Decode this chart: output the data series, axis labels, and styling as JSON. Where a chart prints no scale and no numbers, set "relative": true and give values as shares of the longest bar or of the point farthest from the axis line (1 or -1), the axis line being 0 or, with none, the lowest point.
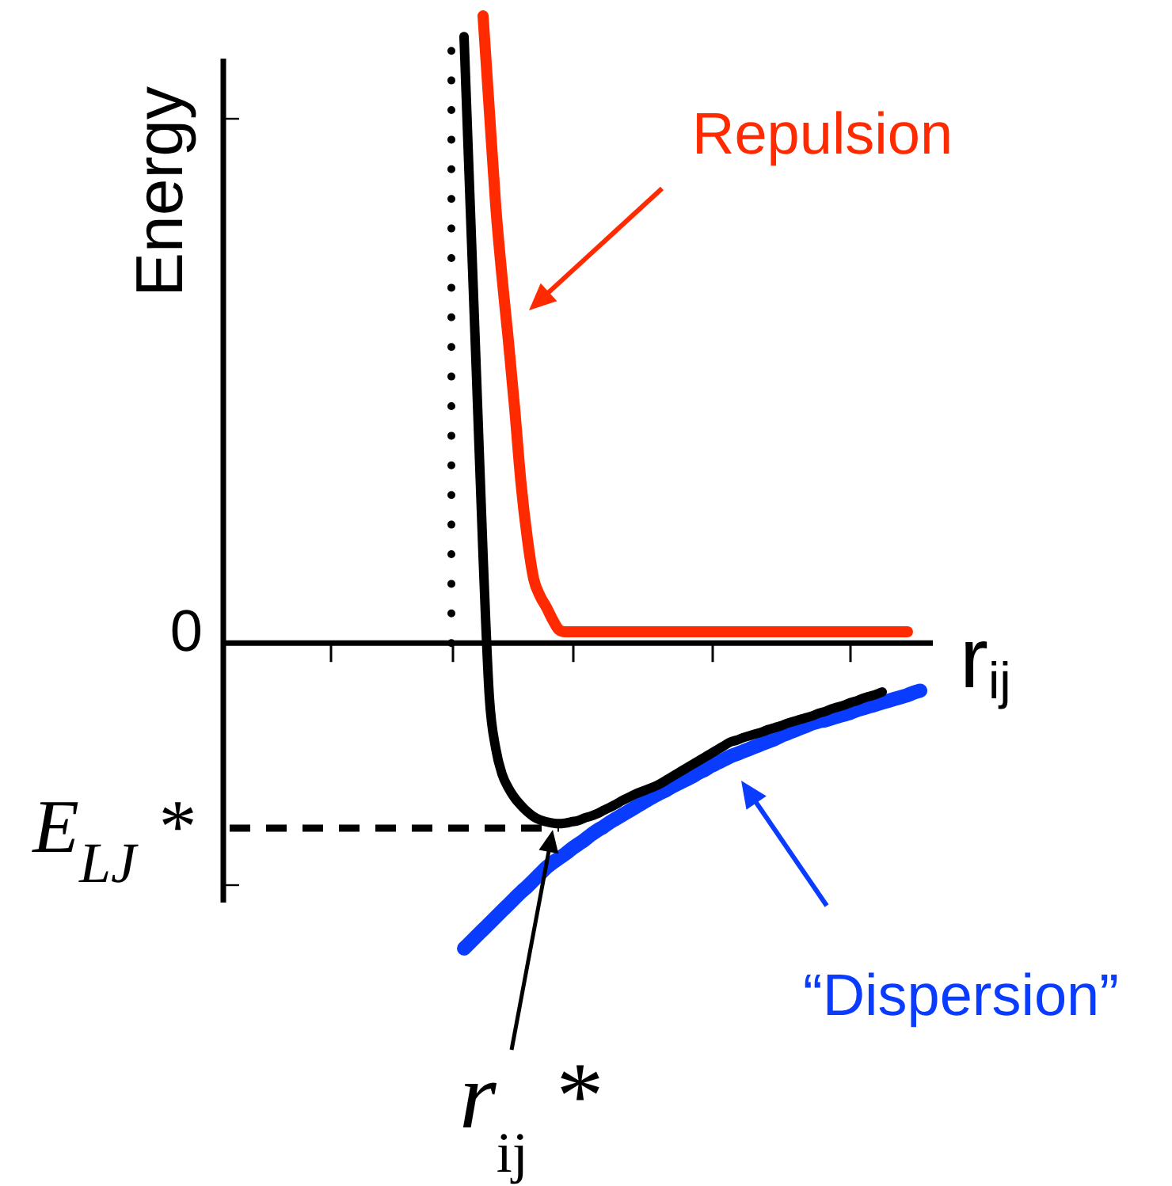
{
  "chart_data": {
    "type": "line",
    "relative": true,
    "marker": "none",
    "ylabel": "Energy",
    "xlabel": "r$_{ij}$",
    "categories": [
      null,
      null,
      null,
      null,
      null,
      null,
      null,
      null,
      null,
      null,
      null,
      null,
      null,
      null,
      null,
      null,
      null,
      null,
      null,
      null,
      null,
      null,
      null,
      null,
      null,
      null,
      null,
      null,
      null,
      null,
      null,
      null,
      null,
      null,
      null,
      null,
      null,
      null,
      null,
      null,
      null,
      null,
      null,
      null,
      null,
      null,
      null,
      null,
      null,
      null,
      null,
      null,
      null,
      null,
      null,
      null,
      null,
      null,
      null,
      null,
      null,
      null,
      null,
      null,
      null,
      null,
      null,
      null,
      null,
      null,
      null,
      null,
      null,
      null,
      null,
      null,
      null,
      null,
      null,
      null,
      null,
      null,
      null,
      null,
      null,
      null,
      null,
      null,
      null,
      null,
      null,
      null,
      null,
      null,
      null,
      null,
      null,
      null,
      null,
      null,
      null,
      null,
      null,
      null,
      null,
      null,
      null,
      null,
      null,
      null,
      null,
      null,
      null
    ],
    "series": [
      {
        "color": "#000000",
        "values": [
          null,
          null,
          null,
          null,
          null,
          null,
          null,
          null,
          null,
          null,
          null,
          null,
          null,
          null,
          null,
          null,
          null,
          null,
          null,
          null,
          null,
          null,
          null,
          null,
          null,
          null,
          null,
          null,
          null,
          null,
          null,
          null,
          null,
          null,
          null,
          null,
          null,
          null,
          0.967,
          0.69,
          0.416,
          0.14,
          -0.087,
          -0.168,
          -0.209,
          -0.231,
          -0.247,
          -0.259,
          -0.269,
          -0.277,
          -0.282,
          -0.285,
          -0.287,
          -0.288,
          -0.287,
          -0.285,
          -0.283,
          -0.279,
          -0.276,
          -0.272,
          -0.267,
          -0.262,
          -0.257,
          -0.251,
          -0.246,
          -0.241,
          -0.237,
          -0.233,
          -0.229,
          -0.224,
          -0.218,
          -0.212,
          -0.206,
          -0.2,
          -0.194,
          -0.188,
          -0.182,
          -0.176,
          -0.17,
          -0.164,
          -0.158,
          -0.155,
          -0.151,
          -0.148,
          -0.145,
          -0.142,
          -0.138,
          -0.135,
          -0.132,
          -0.128,
          -0.125,
          -0.122,
          -0.119,
          -0.116,
          -0.112,
          -0.109,
          -0.105,
          -0.102,
          -0.099,
          -0.095,
          -0.092,
          -0.088,
          -0.085,
          -0.082,
          -0.078,
          null,
          null,
          null,
          null,
          null,
          null,
          null,
          null
        ]
      },
      {
        "name": "Repulsion",
        "color": "#ff2a00",
        "values": [
          null,
          null,
          null,
          null,
          null,
          null,
          null,
          null,
          null,
          null,
          null,
          null,
          null,
          null,
          null,
          null,
          null,
          null,
          null,
          null,
          null,
          null,
          null,
          null,
          null,
          null,
          null,
          null,
          null,
          null,
          null,
          null,
          null,
          null,
          null,
          null,
          null,
          null,
          null,
          null,
          null,
          1,
          0.848,
          0.697,
          0.583,
          0.482,
          0.373,
          0.254,
          0.166,
          0.102,
          0.075,
          0.057,
          0.037,
          0.021,
          0.018,
          0.018,
          0.018,
          0.018,
          0.018,
          0.018,
          0.018,
          0.018,
          0.018,
          0.018,
          0.018,
          0.018,
          0.018,
          0.018,
          0.018,
          0.018,
          0.018,
          0.018,
          0.018,
          0.018,
          0.018,
          0.018,
          0.018,
          0.018,
          0.018,
          0.018,
          0.018,
          0.018,
          0.018,
          0.018,
          0.018,
          0.018,
          0.018,
          0.018,
          0.018,
          0.018,
          0.018,
          0.018,
          0.018,
          0.018,
          0.018,
          0.018,
          0.018,
          0.018,
          0.018,
          0.018,
          0.018,
          0.018,
          0.018,
          0.018,
          0.018,
          0.018,
          0.018,
          0.018,
          0.018,
          null,
          null,
          null,
          null
        ]
      },
      {
        "name": "“Dispersion”",
        "color": "#0a3cff",
        "values": [
          null,
          null,
          null,
          null,
          null,
          null,
          null,
          null,
          null,
          null,
          null,
          null,
          null,
          null,
          null,
          null,
          null,
          null,
          null,
          null,
          null,
          null,
          null,
          null,
          null,
          null,
          null,
          null,
          null,
          null,
          null,
          null,
          null,
          null,
          null,
          null,
          null,
          null,
          -0.487,
          -0.477,
          -0.467,
          -0.457,
          -0.447,
          -0.437,
          -0.427,
          -0.417,
          -0.407,
          -0.397,
          -0.388,
          -0.378,
          -0.368,
          -0.358,
          -0.35,
          -0.343,
          -0.336,
          -0.328,
          -0.321,
          -0.314,
          -0.306,
          -0.299,
          -0.293,
          -0.286,
          -0.28,
          -0.274,
          -0.268,
          -0.262,
          -0.256,
          -0.25,
          -0.244,
          -0.239,
          -0.234,
          -0.228,
          -0.223,
          -0.218,
          -0.213,
          -0.207,
          -0.202,
          -0.196,
          -0.191,
          -0.186,
          -0.181,
          -0.177,
          -0.173,
          -0.169,
          -0.165,
          -0.161,
          -0.157,
          -0.153,
          -0.148,
          -0.144,
          -0.14,
          -0.136,
          -0.132,
          -0.128,
          -0.125,
          -0.123,
          -0.12,
          -0.117,
          -0.114,
          -0.111,
          -0.107,
          -0.104,
          -0.101,
          -0.098,
          -0.095,
          -0.092,
          -0.089,
          -0.086,
          -0.083,
          -0.079,
          -0.076,
          null,
          null
        ]
      }
    ],
    "ref_lines": [
      {
        "axis": "y",
        "value": -0.295,
        "label": "E$_{LJ}$ *",
        "line_style": "dashed"
      }
    ],
    "annotations": [
      "0",
      "r$_{ij}$ *"
    ]
  }
}
